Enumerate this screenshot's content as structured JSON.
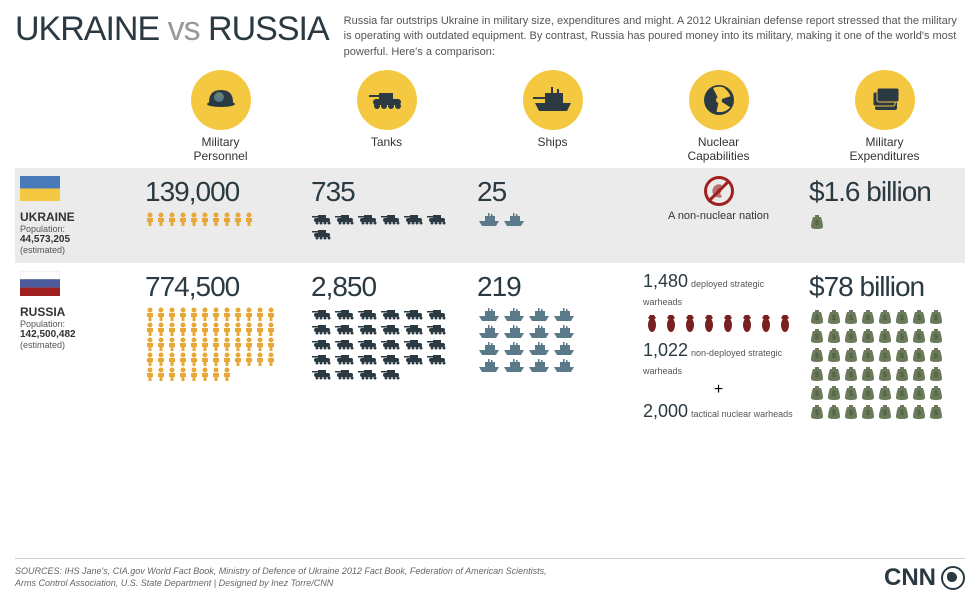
{
  "title_part1": "UKRAINE",
  "title_vs": "vs",
  "title_part2": "RUSSIA",
  "intro": "Russia far outstrips Ukraine in military size, expenditures and might. A 2012 Ukrainian defense report stressed that the military is operating with outdated equipment. By contrast, Russia has poured money into its military, making it one of the world's most powerful. Here's a comparison:",
  "categories": [
    {
      "label": "Military\nPersonnel",
      "icon": "helmet"
    },
    {
      "label": "Tanks",
      "icon": "tank"
    },
    {
      "label": "Ships",
      "icon": "ship"
    },
    {
      "label": "Nuclear\nCapabilities",
      "icon": "nuclear"
    },
    {
      "label": "Military\nExpenditures",
      "icon": "money"
    }
  ],
  "colors": {
    "accent": "#f5c842",
    "dark": "#2b3a42",
    "person": "#e8a838",
    "tank": "#2b3a42",
    "ship": "#5a7a8a",
    "money": "#6a7a5a",
    "bomb": "#7a2020",
    "ukraine_top": "#4a7ab8",
    "ukraine_bot": "#f5c842",
    "russia_top": "#ffffff",
    "russia_mid": "#4a5a9a",
    "russia_bot": "#a02020",
    "row_bg": "#ebebeb"
  },
  "ukraine": {
    "name": "UKRAINE",
    "pop_label": "Population:",
    "population": "44,573,205",
    "est": "(estimated)",
    "personnel": {
      "value": "139,000",
      "icons": 10
    },
    "tanks": {
      "value": "735",
      "icons": 7
    },
    "ships": {
      "value": "25",
      "icons": 2
    },
    "nuclear": {
      "text": "A non-nuclear nation"
    },
    "expenditures": {
      "value": "$1.6 billion",
      "icons": 1
    }
  },
  "russia": {
    "name": "RUSSIA",
    "pop_label": "Population:",
    "population": "142,500,482",
    "est": "(estimated)",
    "personnel": {
      "value": "774,500",
      "icons": 56
    },
    "tanks": {
      "value": "2,850",
      "icons": 28
    },
    "ships": {
      "value": "219",
      "icons": 16
    },
    "nuclear": {
      "deployed_num": "1,480",
      "deployed_text": "deployed strategic warheads",
      "nondeployed_num": "1,022",
      "nondeployed_text": "non-deployed strategic warheads",
      "tactical_num": "2,000",
      "tactical_text": "tactical nuclear warheads",
      "bomb_icons": 8
    },
    "expenditures": {
      "value": "$78 billion",
      "icons": 48
    }
  },
  "sources": "SOURCES: IHS Jane's, CIA.gov World Fact Book, Ministry of Defence of Ukraine 2012 Fact Book, Federation of American Scientists,\nArms Control Association, U.S. State Department  |  Designed by Inez Torre/CNN",
  "logo": "CNN"
}
